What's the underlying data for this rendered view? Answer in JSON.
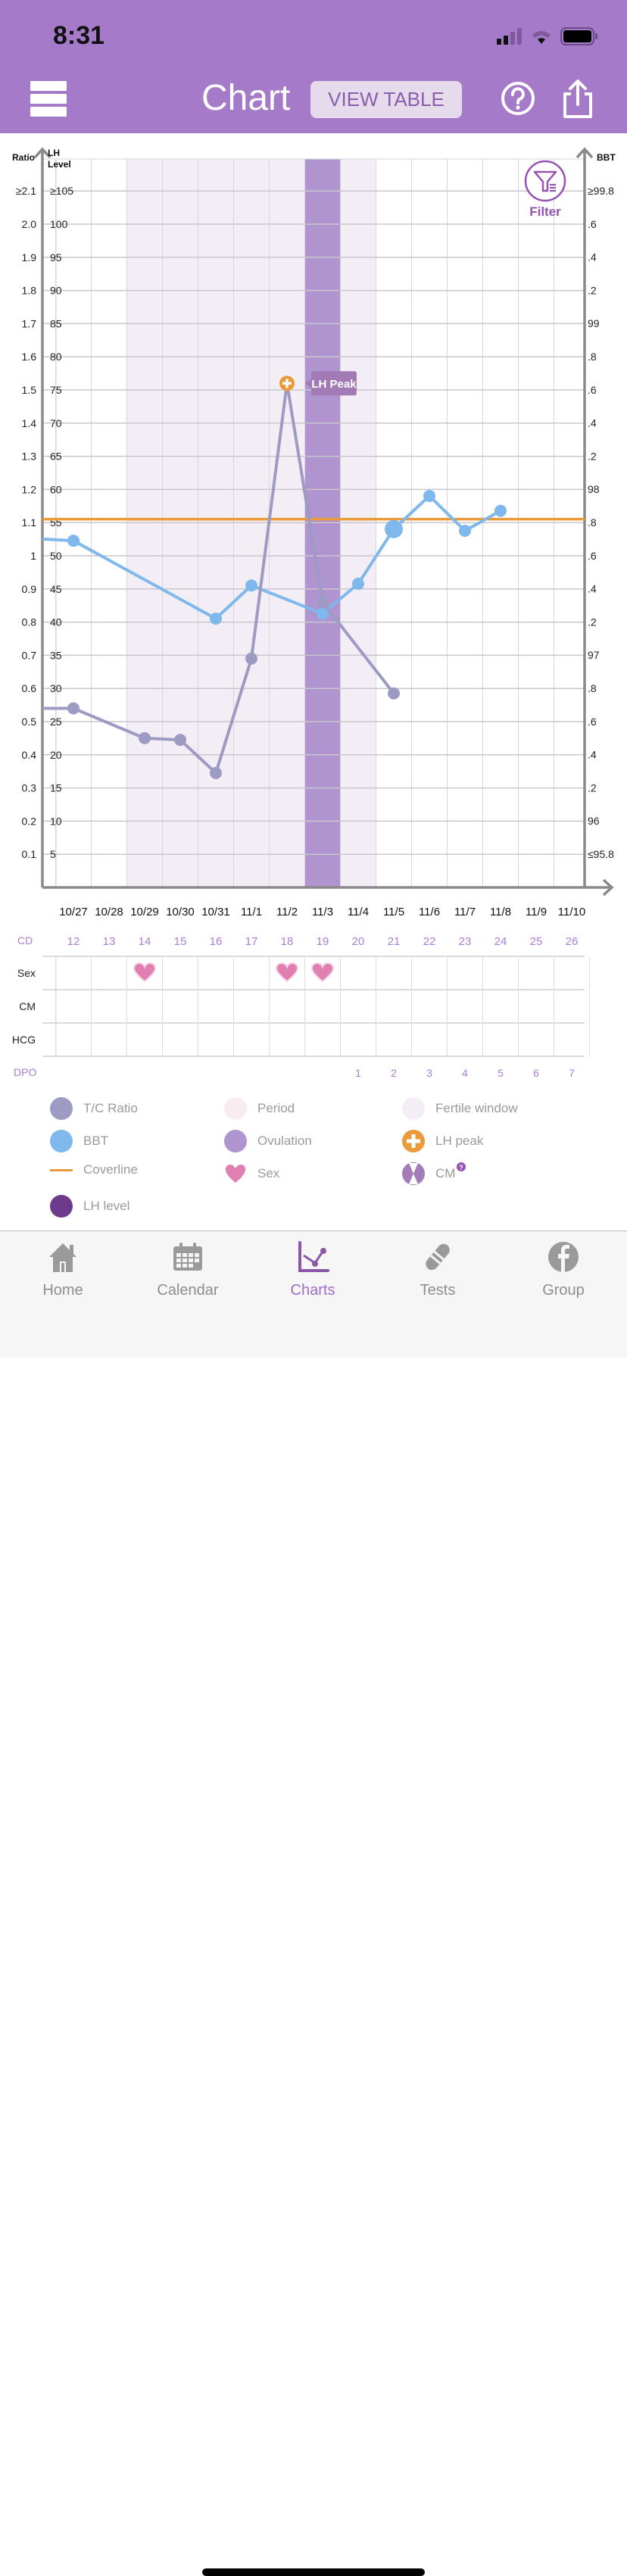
{
  "status_bar": {
    "time": "8:31"
  },
  "header": {
    "title": "Chart",
    "view_table_label": "VIEW TABLE",
    "menu_icon": "hamburger-icon",
    "help_icon": "question-circle-icon",
    "share_icon": "share-icon"
  },
  "filter": {
    "label": "Filter",
    "icon": "filter-funnel-icon"
  },
  "colors": {
    "brand": "#a57bc9",
    "tc_ratio": "#9d9ac4",
    "bbt": "#7fb8ec",
    "coverline": "#eb9a3a",
    "fertile": "#f3eef5",
    "ovulation": "#b094d0",
    "period": "#f8ecef",
    "lh_level": "#6d3a8d",
    "sex": "#e07fb0",
    "cd_text": "#a97ed4"
  },
  "chart_data": {
    "type": "line",
    "title": "Chart",
    "left_axis": {
      "label": "Ratio",
      "ticks": [
        "≥2.1",
        "2.0",
        "1.9",
        "1.8",
        "1.7",
        "1.6",
        "1.5",
        "1.4",
        "1.3",
        "1.2",
        "1.1",
        "1",
        "0.9",
        "0.8",
        "0.7",
        "0.6",
        "0.5",
        "0.4",
        "0.3",
        "0.2",
        "0.1"
      ],
      "range": [
        0,
        2.1
      ]
    },
    "lh_axis": {
      "label_line1": "LH",
      "label_line2": "Level",
      "ticks": [
        "≥105",
        "100",
        "95",
        "90",
        "85",
        "80",
        "75",
        "70",
        "65",
        "60",
        "55",
        "50",
        "45",
        "40",
        "35",
        "30",
        "25",
        "20",
        "15",
        "10",
        "5"
      ]
    },
    "right_axis": {
      "label": "BBT",
      "ticks": [
        "≥99.8",
        ".6",
        ".4",
        ".2",
        "99",
        ".8",
        ".6",
        ".4",
        ".2",
        "98",
        ".8",
        ".6",
        ".4",
        ".2",
        "97",
        ".8",
        ".6",
        ".4",
        ".2",
        "96",
        "≤95.8"
      ],
      "range": [
        95.8,
        99.8
      ]
    },
    "categories": [
      "10/27",
      "10/28",
      "10/29",
      "10/30",
      "10/31",
      "11/1",
      "11/2",
      "11/3",
      "11/4",
      "11/5",
      "11/6",
      "11/7",
      "11/8",
      "11/9",
      "11/10"
    ],
    "cycle_days": [
      "12",
      "13",
      "14",
      "15",
      "16",
      "17",
      "18",
      "19",
      "20",
      "21",
      "22",
      "23",
      "24",
      "25",
      "26"
    ],
    "dpo": [
      "",
      "",
      "",
      "",
      "",
      "",
      "",
      "",
      "1",
      "2",
      "3",
      "4",
      "5",
      "6",
      "7"
    ],
    "series": [
      {
        "name": "T/C Ratio",
        "axis": "ratio",
        "lead_in": 0.54,
        "values": [
          0.54,
          null,
          0.45,
          0.445,
          0.345,
          0.69,
          1.52,
          0.86,
          null,
          0.585,
          null,
          null,
          null,
          null,
          null
        ]
      },
      {
        "name": "BBT",
        "axis": "bbt",
        "lead_in": 97.7,
        "values": [
          97.69,
          null,
          null,
          null,
          97.22,
          97.42,
          null,
          97.25,
          97.43,
          97.76,
          97.96,
          97.75,
          97.87,
          null,
          null
        ],
        "emphasized_index": 9
      }
    ],
    "coverline": 97.82,
    "fertile_window": [
      "10/29",
      "11/4"
    ],
    "ovulation_day": "11/3",
    "lh_peak": {
      "date": "11/2",
      "label": "LH Peak"
    },
    "rows": {
      "cd_label": "CD",
      "sex_label": "Sex",
      "cm_label": "CM",
      "hcg_label": "HCG",
      "dpo_label": "DPO",
      "sex_days": [
        "10/29",
        "11/2",
        "11/3"
      ]
    }
  },
  "legend": [
    {
      "label": "T/C Ratio",
      "icon": "tc-ratio-dot"
    },
    {
      "label": "Period",
      "icon": "period-dot"
    },
    {
      "label": "Fertile window",
      "icon": "fertile-dot"
    },
    {
      "label": "BBT",
      "icon": "bbt-dot"
    },
    {
      "label": "Ovulation",
      "icon": "ovulation-dot"
    },
    {
      "label": "LH peak",
      "icon": "lh-peak-icon"
    },
    {
      "label": "Coverline",
      "icon": "coverline-line"
    },
    {
      "label": "Sex",
      "icon": "heart-icon"
    },
    {
      "label": "CM",
      "icon": "cm-icon"
    },
    {
      "label": "LH level",
      "icon": "lh-level-dot"
    }
  ],
  "tabbar": {
    "items": [
      {
        "label": "Home",
        "icon": "home-icon"
      },
      {
        "label": "Calendar",
        "icon": "calendar-icon"
      },
      {
        "label": "Charts",
        "icon": "chart-icon",
        "active": true
      },
      {
        "label": "Tests",
        "icon": "test-strip-icon"
      },
      {
        "label": "Group",
        "icon": "facebook-icon"
      }
    ]
  }
}
